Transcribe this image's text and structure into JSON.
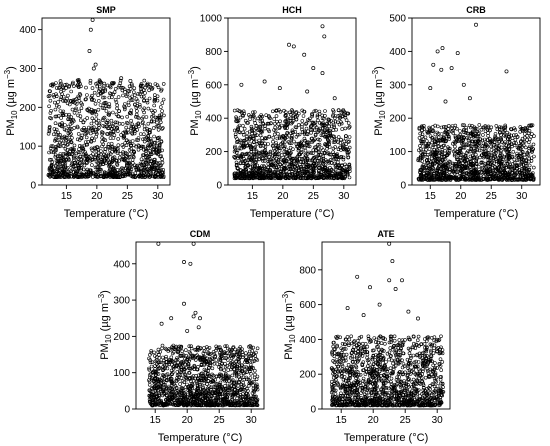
{
  "chart_data": [
    {
      "type": "scatter",
      "title": "SMP",
      "xlabel": "Temperature (°C)",
      "ylabel": {
        "main": "PM",
        "sub": "10",
        "unit_open": " (µg m",
        "unit_sup": "−3",
        "unit_close": ")"
      },
      "xlim": [
        11,
        32
      ],
      "ylim": [
        0,
        430
      ],
      "xticks": [
        15,
        20,
        25,
        30
      ],
      "yticks": [
        0,
        100,
        200,
        300,
        400
      ],
      "x_range": [
        12,
        31
      ],
      "y_range": [
        20,
        270
      ],
      "outliers": [
        {
          "x": 19.3,
          "y": 425
        },
        {
          "x": 19.0,
          "y": 400
        },
        {
          "x": 18.8,
          "y": 345
        },
        {
          "x": 19.8,
          "y": 310
        },
        {
          "x": 19.5,
          "y": 300
        },
        {
          "x": 20.5,
          "y": 265
        },
        {
          "x": 24.0,
          "y": 275
        },
        {
          "x": 17.0,
          "y": 270
        },
        {
          "x": 25.5,
          "y": 268
        },
        {
          "x": 22.5,
          "y": 262
        },
        {
          "x": 14.5,
          "y": 250
        },
        {
          "x": 27.5,
          "y": 255
        }
      ]
    },
    {
      "type": "scatter",
      "title": "HCH",
      "xlabel": "Temperature (°C)",
      "ylabel": {
        "main": "PM",
        "sub": "10",
        "unit_open": " (µg m",
        "unit_sup": "−3",
        "unit_close": ")"
      },
      "xlim": [
        11,
        32
      ],
      "ylim": [
        0,
        1000
      ],
      "xticks": [
        15,
        20,
        25,
        30
      ],
      "yticks": [
        0,
        200,
        400,
        600,
        800,
        1000
      ],
      "x_range": [
        12,
        31
      ],
      "y_range": [
        40,
        450
      ],
      "outliers": [
        {
          "x": 26.5,
          "y": 950
        },
        {
          "x": 26.8,
          "y": 890
        },
        {
          "x": 21.0,
          "y": 840
        },
        {
          "x": 21.8,
          "y": 830
        },
        {
          "x": 23.5,
          "y": 780
        },
        {
          "x": 25.0,
          "y": 700
        },
        {
          "x": 26.5,
          "y": 670
        },
        {
          "x": 17.0,
          "y": 620
        },
        {
          "x": 13.2,
          "y": 600
        },
        {
          "x": 19.5,
          "y": 580
        },
        {
          "x": 24.0,
          "y": 560
        },
        {
          "x": 28.5,
          "y": 520
        }
      ]
    },
    {
      "type": "scatter",
      "title": "CRB",
      "xlabel": "Temperature (°C)",
      "ylabel": {
        "main": "PM",
        "sub": "10",
        "unit_open": " (µg m",
        "unit_sup": "−3",
        "unit_close": ")"
      },
      "xlim": [
        12,
        33
      ],
      "ylim": [
        0,
        500
      ],
      "xticks": [
        15,
        20,
        25,
        30
      ],
      "yticks": [
        0,
        100,
        200,
        300,
        400,
        500
      ],
      "x_range": [
        13,
        32
      ],
      "y_range": [
        15,
        180
      ],
      "outliers": [
        {
          "x": 22.5,
          "y": 480
        },
        {
          "x": 17.0,
          "y": 410
        },
        {
          "x": 16.2,
          "y": 400
        },
        {
          "x": 19.5,
          "y": 395
        },
        {
          "x": 15.5,
          "y": 360
        },
        {
          "x": 18.5,
          "y": 350
        },
        {
          "x": 16.8,
          "y": 345
        },
        {
          "x": 27.5,
          "y": 340
        },
        {
          "x": 20.5,
          "y": 300
        },
        {
          "x": 15.0,
          "y": 290
        },
        {
          "x": 21.5,
          "y": 260
        },
        {
          "x": 17.5,
          "y": 250
        }
      ]
    },
    {
      "type": "scatter",
      "title": "CDM",
      "xlabel": "Temperature (°C)",
      "ylabel": {
        "main": "PM",
        "sub": "10",
        "unit_open": " (µg m",
        "unit_sup": "−3",
        "unit_close": ")"
      },
      "xlim": [
        12,
        32
      ],
      "ylim": [
        0,
        460
      ],
      "xticks": [
        15,
        20,
        25,
        30
      ],
      "yticks": [
        0,
        100,
        200,
        300,
        400
      ],
      "x_range": [
        14,
        31
      ],
      "y_range": [
        10,
        175
      ],
      "outliers": [
        {
          "x": 15.5,
          "y": 455
        },
        {
          "x": 21.0,
          "y": 455
        },
        {
          "x": 19.5,
          "y": 405
        },
        {
          "x": 20.5,
          "y": 400
        },
        {
          "x": 19.5,
          "y": 290
        },
        {
          "x": 21.3,
          "y": 265
        },
        {
          "x": 21.0,
          "y": 255
        },
        {
          "x": 22.0,
          "y": 250
        },
        {
          "x": 17.5,
          "y": 250
        },
        {
          "x": 16.0,
          "y": 235
        },
        {
          "x": 21.8,
          "y": 225
        },
        {
          "x": 20.0,
          "y": 215
        }
      ]
    },
    {
      "type": "scatter",
      "title": "ATE",
      "xlabel": "Temperature (°C)",
      "ylabel": {
        "main": "PM",
        "sub": "10",
        "unit_open": " (µg m",
        "unit_sup": "−3",
        "unit_close": ")"
      },
      "xlim": [
        12,
        32
      ],
      "ylim": [
        0,
        960
      ],
      "xticks": [
        15,
        20,
        25,
        30
      ],
      "yticks": [
        0,
        200,
        400,
        600,
        800
      ],
      "x_range": [
        13.5,
        31
      ],
      "y_range": [
        20,
        420
      ],
      "outliers": [
        {
          "x": 22.5,
          "y": 950
        },
        {
          "x": 23.0,
          "y": 850
        },
        {
          "x": 17.5,
          "y": 760
        },
        {
          "x": 22.5,
          "y": 740
        },
        {
          "x": 24.5,
          "y": 740
        },
        {
          "x": 19.5,
          "y": 700
        },
        {
          "x": 23.5,
          "y": 690
        },
        {
          "x": 16.0,
          "y": 580
        },
        {
          "x": 21.0,
          "y": 600
        },
        {
          "x": 25.5,
          "y": 560
        },
        {
          "x": 27.0,
          "y": 520
        },
        {
          "x": 18.5,
          "y": 540
        }
      ]
    }
  ]
}
